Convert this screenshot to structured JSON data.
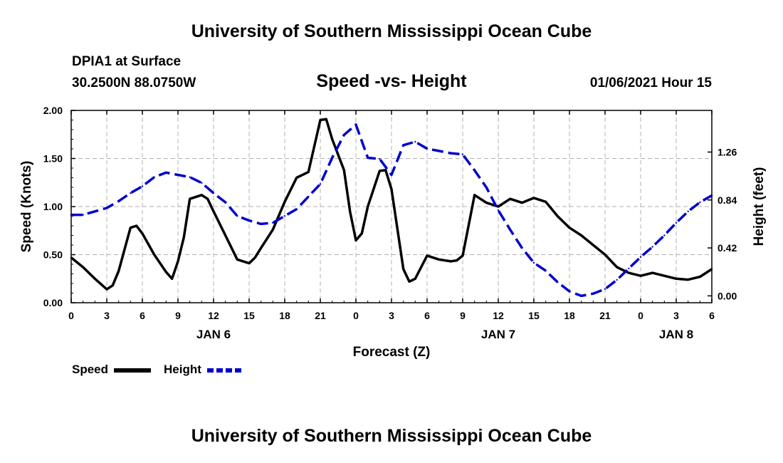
{
  "header": {
    "title": "University of Southern Mississippi Ocean Cube",
    "station": "DPIA1 at Surface",
    "coordinates": "30.2500N 88.0750W",
    "subtitle": "Speed -vs- Height",
    "datetime": "01/06/2021 Hour 15"
  },
  "footer": {
    "title": "University of Southern Mississippi Ocean Cube"
  },
  "legend": {
    "speed_label": "Speed",
    "height_label": "Height"
  },
  "chart_data": {
    "type": "line",
    "title": "Speed -vs- Height",
    "xlabel": "Forecast (Z)",
    "ylabel": "Speed (Knots)",
    "y2label": "Height (feet)",
    "xlim": [
      0,
      54
    ],
    "ylim": [
      0,
      2.0
    ],
    "y2lim": [
      -0.0601,
      1.6248
    ],
    "x_ticks": [
      0,
      3,
      6,
      9,
      12,
      15,
      18,
      21,
      24,
      27,
      30,
      33,
      36,
      39,
      42,
      45,
      48,
      51,
      54
    ],
    "x_tick_labels": [
      "0",
      "3",
      "6",
      "9",
      "12",
      "15",
      "18",
      "21",
      "0",
      "3",
      "6",
      "9",
      "12",
      "15",
      "18",
      "21",
      "0",
      "3",
      "6"
    ],
    "day_labels": [
      {
        "x": 12,
        "label": "JAN 6"
      },
      {
        "x": 36,
        "label": "JAN 7"
      },
      {
        "x": 51,
        "label": "JAN 8"
      }
    ],
    "y_ticks": [
      0.0,
      0.5,
      1.0,
      1.5,
      2.0
    ],
    "y_tick_labels": [
      "0.00",
      "0.50",
      "1.00",
      "1.50",
      "2.00"
    ],
    "y2_ticks": [
      0.0,
      0.42,
      0.84,
      1.26
    ],
    "y2_tick_labels": [
      "0.00",
      "0.42",
      "0.84",
      "1.26"
    ],
    "grid": true,
    "series": [
      {
        "name": "Speed",
        "axis": "left",
        "color": "#000000",
        "style": "solid",
        "x": [
          0,
          1,
          2,
          3,
          3.5,
          4,
          5,
          5.5,
          6,
          7,
          8,
          8.5,
          9,
          9.5,
          10,
          11,
          11.5,
          12,
          13,
          14,
          15,
          15.5,
          16,
          17,
          18,
          19,
          20,
          21,
          21.5,
          22,
          23,
          23.5,
          24,
          24.5,
          25,
          26,
          26.5,
          27,
          28,
          28.5,
          29,
          30,
          31,
          32,
          32.5,
          33,
          34,
          35,
          36,
          37,
          38,
          39,
          40,
          41,
          42,
          43,
          44,
          45,
          46,
          47,
          48,
          49,
          50,
          51,
          52,
          53,
          54
        ],
        "values": [
          0.47,
          0.37,
          0.25,
          0.14,
          0.18,
          0.33,
          0.78,
          0.8,
          0.72,
          0.5,
          0.32,
          0.25,
          0.43,
          0.68,
          1.08,
          1.12,
          1.08,
          0.95,
          0.7,
          0.45,
          0.41,
          0.47,
          0.57,
          0.76,
          1.05,
          1.3,
          1.36,
          1.9,
          1.91,
          1.7,
          1.38,
          0.95,
          0.65,
          0.72,
          1.0,
          1.37,
          1.38,
          1.18,
          0.35,
          0.22,
          0.25,
          0.49,
          0.45,
          0.43,
          0.44,
          0.49,
          1.12,
          1.04,
          1.0,
          1.08,
          1.04,
          1.09,
          1.05,
          0.9,
          0.78,
          0.7,
          0.6,
          0.5,
          0.37,
          0.31,
          0.28,
          0.31,
          0.28,
          0.25,
          0.24,
          0.27,
          0.35
        ]
      },
      {
        "name": "Height",
        "axis": "right",
        "color": "#0000cc",
        "style": "dashed",
        "x": [
          0,
          1,
          2,
          3,
          4,
          5,
          6,
          7,
          8,
          9,
          10,
          11,
          12,
          13,
          14,
          15,
          16,
          17,
          18,
          19,
          20,
          21,
          22,
          23,
          24,
          25,
          26,
          27,
          28,
          29,
          30,
          31,
          32,
          33,
          34,
          35,
          36,
          37,
          38,
          39,
          40,
          41,
          42,
          43,
          44,
          45,
          46,
          47,
          48,
          49,
          50,
          51,
          52,
          53,
          54
        ],
        "values": [
          0.71,
          0.71,
          0.74,
          0.77,
          0.83,
          0.9,
          0.96,
          1.04,
          1.08,
          1.06,
          1.04,
          0.99,
          0.9,
          0.82,
          0.7,
          0.66,
          0.63,
          0.64,
          0.7,
          0.76,
          0.87,
          0.98,
          1.21,
          1.41,
          1.5,
          1.21,
          1.2,
          1.06,
          1.32,
          1.35,
          1.29,
          1.27,
          1.25,
          1.24,
          1.1,
          0.95,
          0.75,
          0.58,
          0.42,
          0.29,
          0.22,
          0.12,
          0.04,
          0.0,
          0.02,
          0.06,
          0.14,
          0.24,
          0.34,
          0.43,
          0.53,
          0.64,
          0.74,
          0.82,
          0.88
        ]
      }
    ]
  }
}
